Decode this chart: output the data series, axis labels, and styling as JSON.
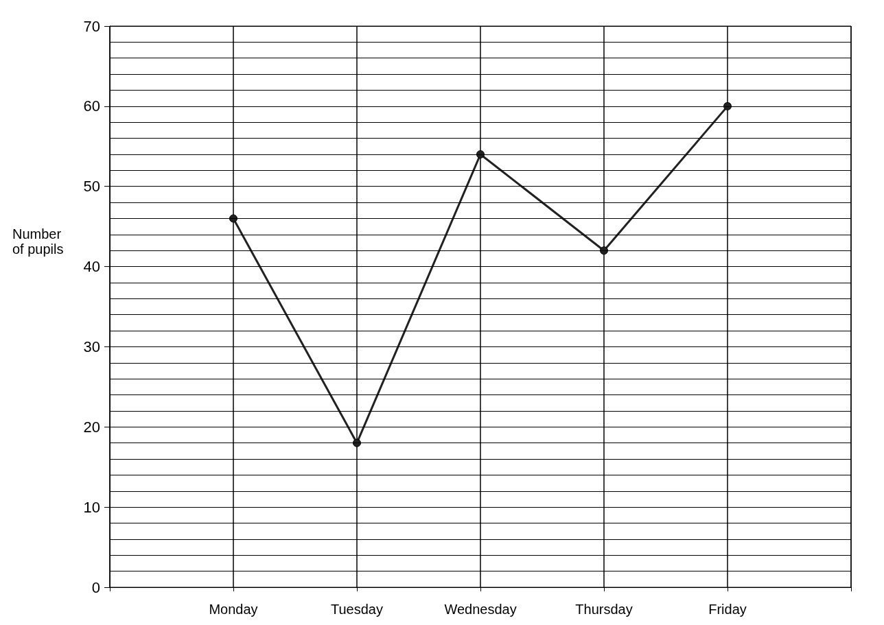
{
  "chart_data": {
    "type": "line",
    "ylabel": "Number of pupils",
    "categories": [
      null,
      "Monday",
      "Tuesday",
      "Wednesday",
      "Thursday",
      "Friday",
      null
    ],
    "series": [
      {
        "color": "#222222",
        "values": [
          null,
          46,
          18,
          54,
          42,
          60,
          null
        ]
      }
    ],
    "ylim": [
      0,
      70
    ],
    "yticks": [
      0,
      {
        "value": 2,
        "label": null
      },
      {
        "value": 4,
        "label": null
      },
      {
        "value": 6,
        "label": null
      },
      {
        "value": 8,
        "label": null
      },
      10,
      {
        "value": 12,
        "label": null
      },
      {
        "value": 14,
        "label": null
      },
      {
        "value": 16,
        "label": null
      },
      {
        "value": 18,
        "label": null
      },
      20,
      {
        "value": 22,
        "label": null
      },
      {
        "value": 24,
        "label": null
      },
      {
        "value": 26,
        "label": null
      },
      {
        "value": 28,
        "label": null
      },
      30,
      {
        "value": 32,
        "label": null
      },
      {
        "value": 34,
        "label": null
      },
      {
        "value": 36,
        "label": null
      },
      {
        "value": 38,
        "label": null
      },
      40,
      {
        "value": 42,
        "label": null
      },
      {
        "value": 44,
        "label": null
      },
      {
        "value": 46,
        "label": null
      },
      {
        "value": 48,
        "label": null
      },
      50,
      {
        "value": 52,
        "label": null
      },
      {
        "value": 54,
        "label": null
      },
      {
        "value": 56,
        "label": null
      },
      {
        "value": 58,
        "label": null
      },
      60,
      {
        "value": 62,
        "label": null
      },
      {
        "value": 64,
        "label": null
      },
      {
        "value": 66,
        "label": null
      },
      {
        "value": 68,
        "label": null
      },
      70
    ],
    "grid": true,
    "marker": "circle",
    "line_style": "solid"
  }
}
